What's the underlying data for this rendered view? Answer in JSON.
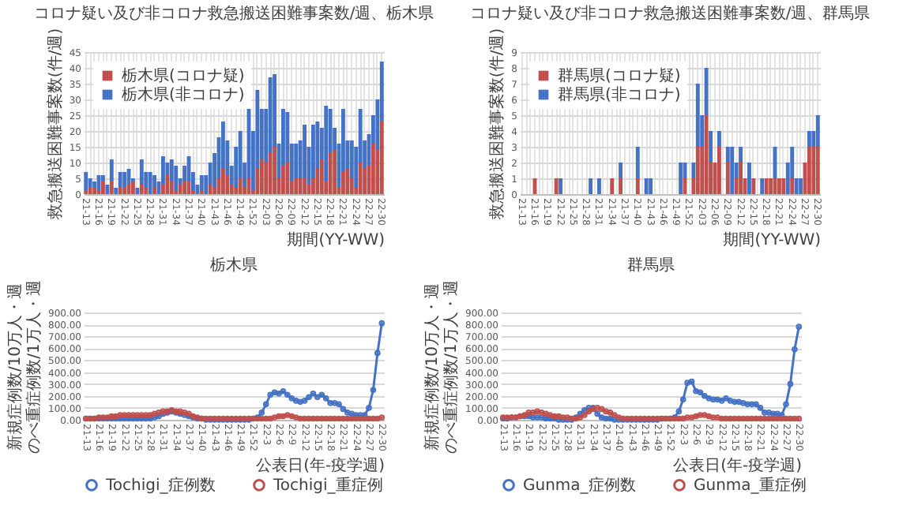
{
  "chart_data": [
    {
      "type": "bar",
      "title": "コロナ疑い及び非コロナ救急搬送困難事案数/週、栃木県",
      "xlabel": "期間(YY-WW)",
      "ylabel": "救急搬送困難事案数(件/週)",
      "stacked": true,
      "grid": true,
      "legend": "top left",
      "categories": [
        "21-13",
        null,
        null,
        "21-16",
        null,
        null,
        "21-19",
        null,
        null,
        "21-22",
        null,
        null,
        "21-25",
        null,
        null,
        "21-28",
        null,
        null,
        "21-31",
        null,
        null,
        "21-34",
        null,
        null,
        "21-37",
        null,
        null,
        "21-40",
        null,
        null,
        "21-43",
        null,
        null,
        "21-46",
        null,
        null,
        "21-49",
        null,
        null,
        "21-52",
        null,
        null,
        "22-03",
        null,
        null,
        "22-06",
        null,
        null,
        "22-09",
        null,
        null,
        "22-12",
        null,
        null,
        "22-15",
        null,
        null,
        "22-18",
        null,
        null,
        "22-21",
        null,
        null,
        "22-24",
        null,
        null,
        "22-27",
        null,
        null,
        "22-30"
      ],
      "ylim": [
        0,
        45
      ],
      "yticks": [
        0,
        5,
        10,
        15,
        20,
        25,
        30,
        35,
        40,
        45
      ],
      "series": [
        {
          "name": "栃木県(コロナ疑)",
          "color": "#c0504d",
          "values": [
            1,
            2,
            2,
            1,
            4,
            0,
            4,
            0,
            2,
            2,
            3,
            4,
            0,
            3,
            2,
            0,
            2,
            0,
            3,
            6,
            4,
            1,
            3,
            4,
            4,
            1,
            0,
            1,
            0,
            3,
            2,
            5,
            8,
            6,
            3,
            2,
            5,
            2,
            5,
            1,
            8,
            11,
            10,
            13,
            15,
            5,
            9,
            10,
            4,
            5,
            5,
            5,
            3,
            5,
            8,
            11,
            4,
            13,
            14,
            2,
            7,
            8,
            5,
            2,
            10,
            8,
            9,
            16,
            14,
            23
          ]
        },
        {
          "name": "栃木県(非コロナ)",
          "color": "#4472c4",
          "values": [
            6,
            3,
            2,
            5,
            2,
            3,
            7,
            2,
            5,
            5,
            5,
            1,
            2,
            8,
            5,
            7,
            4,
            4,
            9,
            4,
            7,
            8,
            2,
            5,
            8,
            6,
            3,
            5,
            6,
            7,
            11,
            13,
            15,
            11,
            6,
            13,
            15,
            8,
            22,
            19,
            25,
            16,
            17,
            24,
            23,
            11,
            18,
            16,
            12,
            11,
            12,
            17,
            12,
            17,
            15,
            10,
            24,
            14,
            7,
            14,
            20,
            9,
            12,
            13,
            17,
            9,
            10,
            9,
            16,
            19
          ]
        }
      ]
    },
    {
      "type": "bar",
      "title": "コロナ疑い及び非コロナ救急搬送困難事案数/週、群馬県",
      "xlabel": "期間(YY-WW)",
      "ylabel": "救急搬送困難事案数(件/週)",
      "stacked": true,
      "grid": true,
      "legend": "top left",
      "categories": [
        "21-13",
        null,
        null,
        "21-16",
        null,
        null,
        "21-19",
        null,
        null,
        "21-22",
        null,
        null,
        "21-25",
        null,
        null,
        "21-28",
        null,
        null,
        "21-31",
        null,
        null,
        "21-34",
        null,
        null,
        "21-37",
        null,
        null,
        "21-40",
        null,
        null,
        "21-43",
        null,
        null,
        "21-46",
        null,
        null,
        "21-49",
        null,
        null,
        "21-52",
        null,
        null,
        "22-03",
        null,
        null,
        "22-06",
        null,
        null,
        "22-09",
        null,
        null,
        "22-12",
        null,
        null,
        "22-15",
        null,
        null,
        "22-18",
        null,
        null,
        "22-21",
        null,
        null,
        "22-24",
        null,
        null,
        "22-27",
        null,
        null,
        "22-30"
      ],
      "ylim": [
        0,
        9
      ],
      "yticks": [
        0,
        1,
        2,
        3,
        4,
        5,
        6,
        7,
        8,
        9
      ],
      "series": [
        {
          "name": "群馬県(コロナ疑)",
          "color": "#c0504d",
          "values": [
            0,
            0,
            0,
            1,
            0,
            0,
            0,
            0,
            1,
            0,
            0,
            0,
            0,
            0,
            0,
            0,
            0,
            0,
            0,
            0,
            0,
            1,
            0,
            1,
            0,
            0,
            0,
            1,
            0,
            0,
            0,
            0,
            0,
            0,
            0,
            0,
            0,
            0,
            1,
            0,
            1,
            3,
            3,
            5,
            2,
            2,
            3,
            0,
            2,
            0,
            1,
            2,
            1,
            0,
            1,
            0,
            0,
            1,
            1,
            1,
            1,
            1,
            0,
            1,
            0,
            0,
            2,
            3,
            3,
            3
          ]
        },
        {
          "name": "群馬県(非コロナ)",
          "color": "#4472c4",
          "values": [
            0,
            0,
            0,
            0,
            0,
            0,
            0,
            0,
            0,
            1,
            0,
            0,
            0,
            0,
            0,
            0,
            1,
            0,
            1,
            0,
            0,
            0,
            0,
            1,
            0,
            0,
            0,
            2,
            0,
            1,
            1,
            0,
            0,
            0,
            0,
            0,
            0,
            2,
            1,
            0,
            1,
            4,
            2,
            3,
            2,
            0,
            1,
            0,
            1,
            3,
            1,
            1,
            0,
            2,
            0,
            0,
            1,
            0,
            0,
            2,
            0,
            0,
            2,
            2,
            1,
            1,
            0,
            1,
            1,
            2
          ]
        }
      ]
    },
    {
      "type": "line",
      "title": "栃木県",
      "xlabel": "公表日(年-疫学週)",
      "ylabel": "新規症例数/10万人・週のべ重症例数/1万人・週",
      "grid": "y",
      "legend": "bottom",
      "marker": "circle",
      "categories": [
        "21-13",
        null,
        null,
        "21-16",
        null,
        null,
        "21-19",
        null,
        null,
        "21-22",
        null,
        null,
        "21-25",
        null,
        null,
        "21-28",
        null,
        null,
        "21-31",
        null,
        null,
        "21-34",
        null,
        null,
        "21-37",
        null,
        null,
        "21-40",
        null,
        null,
        "21-43",
        null,
        null,
        "21-46",
        null,
        null,
        "21-49",
        null,
        null,
        "21-52",
        null,
        null,
        "22-3",
        null,
        null,
        "22-6",
        null,
        null,
        "22-9",
        null,
        null,
        "22-12",
        null,
        null,
        "22-15",
        null,
        null,
        "22-18",
        null,
        null,
        "22-21",
        null,
        null,
        "22-24",
        null,
        null,
        "22-27",
        null,
        null,
        "22-30"
      ],
      "ylim": [
        0,
        900
      ],
      "yticks": [
        {
          "value": 0,
          "label": "0.00"
        },
        {
          "value": 100,
          "label": "100.00"
        },
        {
          "value": 200,
          "label": "200.00"
        },
        {
          "value": 300,
          "label": "300.00"
        },
        {
          "value": 400,
          "label": "400.00"
        },
        {
          "value": 500,
          "label": "500.00"
        },
        {
          "value": 600,
          "label": "600.00"
        },
        {
          "value": 700,
          "label": "700.00"
        },
        {
          "value": 800,
          "label": "800.00"
        },
        {
          "value": 900,
          "label": "900.00"
        }
      ],
      "series": [
        {
          "name": "Tochigi_症例数",
          "color": "#4472c4",
          "values": [
            10,
            10,
            10,
            10,
            10,
            10,
            10,
            10,
            10,
            10,
            10,
            10,
            10,
            10,
            10,
            10,
            20,
            30,
            50,
            60,
            70,
            60,
            50,
            40,
            30,
            20,
            10,
            10,
            0,
            0,
            0,
            0,
            0,
            0,
            0,
            0,
            0,
            0,
            0,
            10,
            20,
            60,
            130,
            210,
            230,
            220,
            240,
            210,
            180,
            160,
            150,
            160,
            190,
            220,
            190,
            210,
            180,
            140,
            140,
            130,
            90,
            60,
            50,
            40,
            40,
            40,
            100,
            250,
            560,
            810
          ]
        },
        {
          "name": "Tochigi_重症例",
          "color": "#c0504d",
          "values": [
            10,
            10,
            10,
            20,
            20,
            20,
            30,
            30,
            40,
            40,
            40,
            40,
            40,
            40,
            40,
            40,
            50,
            60,
            70,
            70,
            80,
            70,
            70,
            60,
            50,
            30,
            20,
            10,
            10,
            10,
            10,
            10,
            10,
            10,
            10,
            10,
            10,
            10,
            10,
            10,
            10,
            10,
            10,
            10,
            20,
            30,
            30,
            40,
            30,
            20,
            10,
            10,
            10,
            10,
            10,
            10,
            10,
            10,
            10,
            10,
            10,
            10,
            10,
            10,
            10,
            10,
            10,
            10,
            10,
            20
          ]
        }
      ]
    },
    {
      "type": "line",
      "title": "群馬県",
      "xlabel": "公表日(年-疫学週)",
      "ylabel": "新規症例数/10万人・週のべ重症例数/1万人・週",
      "grid": "y",
      "legend": "bottom",
      "marker": "circle",
      "categories": [
        "21-13",
        null,
        null,
        "21-16",
        null,
        null,
        "21-19",
        null,
        null,
        "21-22",
        null,
        null,
        "21-25",
        null,
        null,
        "21-28",
        null,
        null,
        "21-31",
        null,
        null,
        "21-34",
        null,
        null,
        "21-37",
        null,
        null,
        "21-40",
        null,
        null,
        "21-43",
        null,
        null,
        "21-46",
        null,
        null,
        "21-49",
        null,
        null,
        "21-52",
        null,
        null,
        "22-3",
        null,
        null,
        "22-6",
        null,
        null,
        "22-9",
        null,
        null,
        "22-12",
        null,
        null,
        "22-15",
        null,
        null,
        "22-18",
        null,
        null,
        "22-21",
        null,
        null,
        "22-24",
        null,
        null,
        "22-27",
        null,
        null,
        "22-30"
      ],
      "ylim": [
        0,
        900
      ],
      "yticks": [
        {
          "value": 0,
          "label": "0.00"
        },
        {
          "value": 100,
          "label": "100.00"
        },
        {
          "value": 200,
          "label": "200.00"
        },
        {
          "value": 300,
          "label": "300.00"
        },
        {
          "value": 400,
          "label": "400.00"
        },
        {
          "value": 500,
          "label": "500.00"
        },
        {
          "value": 600,
          "label": "600.00"
        },
        {
          "value": 700,
          "label": "700.00"
        },
        {
          "value": 800,
          "label": "800.00"
        },
        {
          "value": 900,
          "label": "900.00"
        }
      ],
      "series": [
        {
          "name": "Gunma_症例数",
          "color": "#4472c4",
          "values": [
            10,
            10,
            20,
            20,
            30,
            30,
            30,
            20,
            20,
            20,
            10,
            10,
            10,
            0,
            0,
            0,
            0,
            20,
            50,
            80,
            100,
            100,
            50,
            20,
            10,
            10,
            0,
            0,
            0,
            0,
            0,
            0,
            0,
            0,
            0,
            0,
            0,
            10,
            10,
            10,
            20,
            70,
            170,
            310,
            320,
            240,
            230,
            200,
            180,
            170,
            170,
            160,
            180,
            160,
            150,
            150,
            140,
            130,
            130,
            130,
            100,
            60,
            60,
            50,
            50,
            40,
            130,
            300,
            590,
            780
          ]
        },
        {
          "name": "Gunma_重症例",
          "color": "#c0504d",
          "values": [
            20,
            20,
            20,
            20,
            30,
            40,
            60,
            60,
            70,
            60,
            50,
            40,
            30,
            30,
            20,
            20,
            10,
            10,
            20,
            40,
            70,
            90,
            100,
            90,
            70,
            60,
            40,
            20,
            10,
            10,
            10,
            10,
            10,
            10,
            10,
            10,
            10,
            10,
            10,
            10,
            10,
            10,
            10,
            20,
            20,
            30,
            40,
            40,
            30,
            20,
            20,
            10,
            10,
            10,
            10,
            10,
            10,
            10,
            10,
            10,
            10,
            10,
            10,
            10,
            10,
            10,
            10,
            10,
            10,
            10
          ]
        }
      ]
    }
  ]
}
